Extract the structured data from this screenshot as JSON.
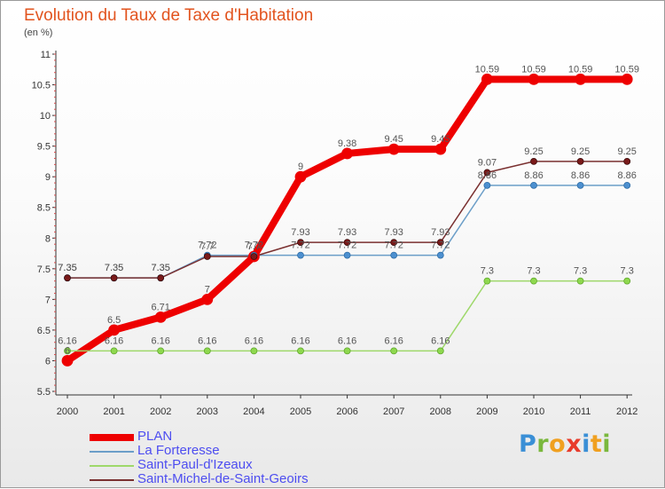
{
  "title": "Evolution du Taux de Taxe d'Habitation",
  "unit_label": "(en %)",
  "brand": {
    "text": "Proxiti",
    "letter_colors": [
      "#3a8fd6",
      "#7ab83c",
      "#f0a020",
      "#e83c2c",
      "#3a8fd6",
      "#f0a020",
      "#7ab83c"
    ]
  },
  "chart_data": {
    "type": "line",
    "title": "Evolution du Taux de Taxe d'Habitation",
    "ylabel": "(en %)",
    "xlabel": "",
    "x": [
      "2000",
      "2001",
      "2002",
      "2003",
      "2004",
      "2005",
      "2006",
      "2007",
      "2008",
      "2009",
      "2010",
      "2011",
      "2012"
    ],
    "ylim": [
      5.5,
      11
    ],
    "yticks": [
      "5.5",
      "6",
      "6.5",
      "7",
      "7.5",
      "8",
      "8.5",
      "9",
      "9.5",
      "10",
      "10.5",
      "11"
    ],
    "grid": false,
    "legend_position": "bottom-left",
    "series": [
      {
        "name": "PLAN",
        "color": "#ee0000",
        "values": [
          6.0,
          6.5,
          6.71,
          7.0,
          7.7,
          9.0,
          9.38,
          9.45,
          9.45,
          10.59,
          10.59,
          10.59,
          10.59
        ],
        "labels": [
          "6",
          "6.5",
          "6.71",
          "7",
          "7.7",
          "9",
          "9.38",
          "9.45",
          "9.45",
          "10.59",
          "10.59",
          "10.59",
          "10.59"
        ]
      },
      {
        "name": "La Forteresse",
        "color": "#6b9ec8",
        "values": [
          7.35,
          7.35,
          7.35,
          7.72,
          7.72,
          7.72,
          7.72,
          7.72,
          7.72,
          8.86,
          8.86,
          8.86,
          8.86
        ],
        "labels": [
          "7.35",
          "7.35",
          "7.35",
          "7.72",
          "7.72",
          "7.72",
          "7.72",
          "7.72",
          "7.72",
          "8.86",
          "8.86",
          "8.86",
          "8.86"
        ]
      },
      {
        "name": "Saint-Paul-d'Izeaux",
        "color": "#9ed86a",
        "values": [
          6.16,
          6.16,
          6.16,
          6.16,
          6.16,
          6.16,
          6.16,
          6.16,
          6.16,
          7.3,
          7.3,
          7.3,
          7.3
        ],
        "labels": [
          "6.16",
          "6.16",
          "6.16",
          "6.16",
          "6.16",
          "6.16",
          "6.16",
          "6.16",
          "6.16",
          "7.3",
          "7.3",
          "7.3",
          "7.3"
        ]
      },
      {
        "name": "Saint-Michel-de-Saint-Geoirs",
        "color": "#7a3030",
        "values": [
          7.35,
          7.35,
          7.35,
          7.7,
          7.7,
          7.93,
          7.93,
          7.93,
          7.93,
          9.07,
          9.25,
          9.25,
          9.25
        ],
        "labels": [
          "7.35",
          "7.35",
          "7.35",
          "7.7",
          "7.7",
          "7.93",
          "7.93",
          "7.93",
          "7.93",
          "9.07",
          "9.25",
          "9.25",
          "9.25"
        ]
      }
    ]
  }
}
